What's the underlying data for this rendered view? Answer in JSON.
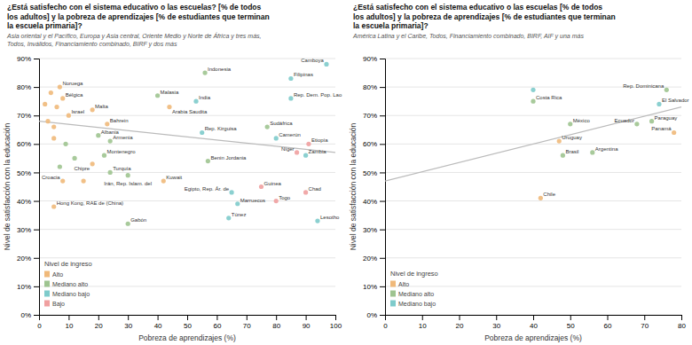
{
  "chart_data": [
    {
      "type": "scatter",
      "title": "¿Está satisfecho con el sistema educativo o las escuelas? [% de todos\nlos adultos] y la pobreza de aprendizajes [% de estudiantes que terminan\nla escuela primaria]?",
      "subtitle": "Asia oriental y el Pacífico, Europa y Asia central, Oriente Medio y Norte de África y tres más,\nTodos, Inválidos, Financiamiento combinado, BIRF y dos más",
      "xlabel": "Pobreza de aprendizajes (%)",
      "ylabel": "Nivel de satisfacción con la educación",
      "legend_title": "Nivel de ingreso",
      "legend": "lower left",
      "grid": "y",
      "xlim": [
        0,
        100
      ],
      "ylim": [
        0,
        90
      ],
      "xticks": [
        0,
        10,
        20,
        30,
        40,
        50,
        60,
        70,
        80,
        90,
        100
      ],
      "yticks": [
        {
          "value": 0,
          "label": "0%"
        },
        {
          "value": 10,
          "label": "10%"
        },
        {
          "value": 20,
          "label": "20%"
        },
        {
          "value": 30,
          "label": "30%"
        },
        {
          "value": 40,
          "label": "40%"
        },
        {
          "value": 50,
          "label": "50%"
        },
        {
          "value": 60,
          "label": "60%"
        },
        {
          "value": 70,
          "label": "70%"
        },
        {
          "value": 80,
          "label": "80%"
        },
        {
          "value": 90,
          "label": "90%"
        }
      ],
      "series": [
        {
          "name": "Alto",
          "color": "#f0b97a",
          "x": [
            7,
            8,
            18,
            10,
            23,
            18,
            8,
            42,
            5,
            44,
            6,
            4,
            3,
            5,
            15,
            2,
            5
          ],
          "values": [
            80,
            76,
            72,
            70,
            67,
            53,
            47,
            47,
            38,
            73,
            73,
            78,
            68,
            62,
            47,
            74,
            66
          ],
          "labels": [
            "Noruega",
            "Bélgica",
            "Malta",
            "Israel",
            "Bahrein",
            "Chipre",
            "Croacia",
            "Kuwait",
            "Hong Kong, RAE de (China)",
            "Arabia Saudita",
            null,
            null,
            null,
            null,
            null,
            null,
            null
          ]
        },
        {
          "name": "Mediano alto",
          "color": "#9ec490",
          "x": [
            20,
            24,
            22,
            24,
            30,
            30,
            56,
            40,
            57,
            77,
            9,
            12,
            7
          ],
          "values": [
            63,
            61,
            56,
            50,
            49,
            32,
            85,
            77,
            54,
            66,
            60,
            55,
            52
          ],
          "labels": [
            "Albania",
            "Armenia",
            "Montenegro",
            "Turquía",
            "Irán, Rep. Islam. del",
            "Gabón",
            "Indonesia",
            "Malasia",
            "Benin Jordania",
            "Sudáfrica",
            null,
            null,
            null
          ]
        },
        {
          "name": "Mediano bajo",
          "color": "#7ecbcb",
          "x": [
            53,
            55,
            65,
            67,
            64,
            85,
            85,
            80,
            90,
            94,
            97
          ],
          "values": [
            75,
            64,
            43,
            39,
            34,
            83,
            76,
            62,
            56,
            33,
            88
          ],
          "labels": [
            "India",
            "Rep. Kirguisa",
            "Egipto, Rep. Ár. de",
            "Marruecos",
            "Túnez",
            "Filipinas",
            "Rep. Dem. Pop. Lao",
            "Camerún",
            "Zambia",
            "Lesotho",
            "Camboya"
          ]
        },
        {
          "name": "Bajo",
          "color": "#f0a0a0",
          "x": [
            91,
            87,
            75,
            90,
            80
          ],
          "values": [
            60,
            57,
            45,
            43,
            40
          ],
          "labels": [
            "Etiopía",
            "Níger",
            "Guinea",
            "Chad",
            "Togo"
          ]
        },
        {
          "type": "line",
          "color": "#bbbbbb",
          "x": [
            0,
            100
          ],
          "values": [
            68,
            57
          ]
        }
      ]
    },
    {
      "type": "scatter",
      "title": "¿Está satisfecho con el sistema educativo o las escuelas [% de todos\nlos adultos] y la pobreza de aprendizajes [% de estudiantes que terminan\nla escuela primaria]?",
      "subtitle": "América Latina y el Caribe, Todos, Financiamiento combinado, BIRF, AIF y una más",
      "xlabel": "Pobreza de aprendizajes (%)",
      "ylabel": "Nivel de satisfacción con la educación",
      "legend_title": "Nivel de ingreso",
      "legend": "lower left",
      "grid": "y",
      "xlim": [
        0,
        80
      ],
      "ylim": [
        0,
        90
      ],
      "xticks": [
        0,
        10,
        20,
        30,
        40,
        50,
        60,
        70,
        80
      ],
      "yticks": [
        {
          "value": 0,
          "label": "0%"
        },
        {
          "value": 10,
          "label": "10%"
        },
        {
          "value": 20,
          "label": "20%"
        },
        {
          "value": 30,
          "label": "30%"
        },
        {
          "value": 40,
          "label": "40%"
        },
        {
          "value": 50,
          "label": "50%"
        },
        {
          "value": 60,
          "label": "60%"
        },
        {
          "value": 70,
          "label": "70%"
        },
        {
          "value": 80,
          "label": "80%"
        },
        {
          "value": 90,
          "label": "90%"
        }
      ],
      "series": [
        {
          "name": "Alto",
          "color": "#f0b97a",
          "x": [
            42,
            47,
            78
          ],
          "values": [
            41,
            61,
            64
          ],
          "labels": [
            "Chile",
            "Uruguay",
            "Panamá"
          ]
        },
        {
          "name": "Mediano alto",
          "color": "#9ec490",
          "x": [
            40,
            48,
            50,
            56,
            68,
            76,
            72
          ],
          "values": [
            75,
            56,
            67,
            57,
            67,
            79,
            68
          ],
          "labels": [
            "Costa Rica",
            "Brasil",
            "México",
            "Argentina",
            "Ecuador",
            "Rep. Dominicana",
            "Paraguay"
          ]
        },
        {
          "name": "Mediano bajo",
          "color": "#7ecbcb",
          "x": [
            74,
            40
          ],
          "values": [
            74,
            79
          ],
          "labels": [
            "El Salvador",
            null
          ]
        },
        {
          "type": "line",
          "color": "#bbbbbb",
          "x": [
            0,
            80
          ],
          "values": [
            47,
            73
          ]
        }
      ]
    }
  ]
}
